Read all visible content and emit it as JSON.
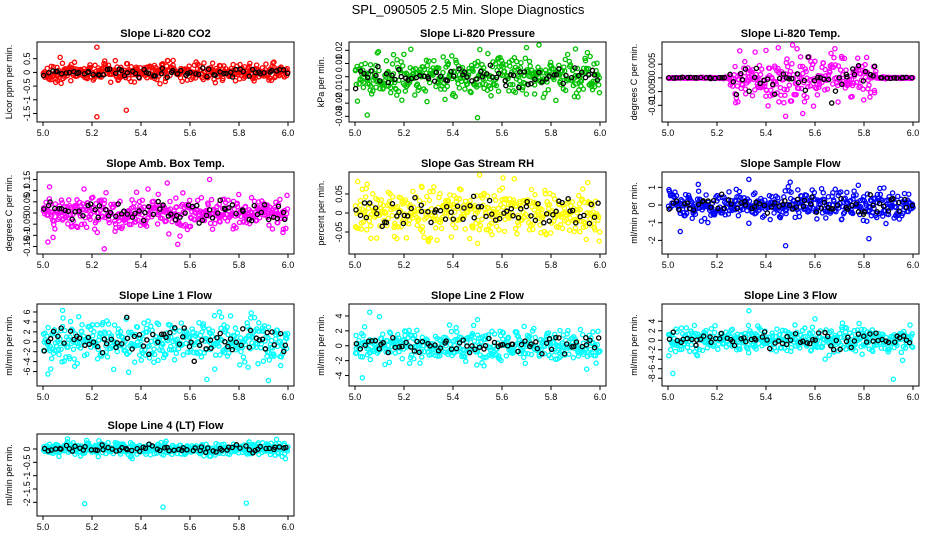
{
  "title": "SPL_090505  2.5 Min. Slope Diagnostics",
  "chart_data": [
    {
      "type": "scatter",
      "title": "Slope Li-820 CO2",
      "ylabel": "Licor ppm per min.",
      "xlim": [
        5.0,
        6.0
      ],
      "ylim": [
        -1.7,
        1.0
      ],
      "yticks": [
        -1.5,
        -1.0,
        -0.5,
        0.0,
        0.5
      ],
      "xticks": [
        5.0,
        5.2,
        5.4,
        5.6,
        5.8,
        6.0
      ],
      "color": "#ff0000",
      "spread": 0.16,
      "outliers": [
        [
          5.22,
          0.92
        ],
        [
          5.22,
          -1.62
        ],
        [
          5.34,
          -1.38
        ],
        [
          5.07,
          0.55
        ]
      ]
    },
    {
      "type": "scatter",
      "title": "Slope Li-820 Pressure",
      "ylabel": "kPa per min.",
      "xlim": [
        5.0,
        6.0
      ],
      "ylim": [
        -0.032,
        0.024
      ],
      "yticks": [
        -0.03,
        -0.02,
        -0.01,
        0.0,
        0.01,
        0.02
      ],
      "xticks": [
        5.0,
        5.2,
        5.4,
        5.6,
        5.8,
        6.0
      ],
      "color": "#00c000",
      "spread": 0.007,
      "outliers": [
        [
          5.05,
          -0.029
        ],
        [
          5.5,
          -0.031
        ],
        [
          5.7,
          0.022
        ],
        [
          5.9,
          0.021
        ]
      ]
    },
    {
      "type": "scatter",
      "title": "Slope Li-820 Temp.",
      "ylabel": "degrees C per min.",
      "xlim": [
        5.0,
        6.0
      ],
      "ylim": [
        -0.015,
        0.012
      ],
      "yticks": [
        -0.01,
        -0.005,
        0.0,
        0.005
      ],
      "xticks": [
        5.0,
        5.2,
        5.4,
        5.6,
        5.8,
        6.0
      ],
      "color": "#ff00ff",
      "spread": 0.0,
      "burst": {
        "start": 5.25,
        "end": 5.85,
        "spread": 0.004
      },
      "outliers": [
        [
          5.4,
          0.01
        ],
        [
          5.45,
          0.011
        ],
        [
          5.48,
          -0.014
        ],
        [
          5.55,
          -0.013
        ]
      ]
    },
    {
      "type": "scatter",
      "title": "Slope Amb. Box Temp.",
      "ylabel": "degrees C per min.",
      "xlim": [
        5.0,
        6.0
      ],
      "ylim": [
        -0.17,
        0.17
      ],
      "yticks": [
        -0.15,
        -0.1,
        -0.05,
        0.0,
        0.05,
        0.1,
        0.15
      ],
      "xticks": [
        5.0,
        5.2,
        5.4,
        5.6,
        5.8,
        6.0
      ],
      "color": "#ff00ff",
      "spread": 0.04,
      "outliers": [
        [
          5.68,
          0.15
        ],
        [
          5.25,
          -0.16
        ],
        [
          5.55,
          -0.14
        ],
        [
          5.02,
          -0.13
        ]
      ]
    },
    {
      "type": "scatter",
      "title": "Slope Gas Stream RH",
      "ylabel": "percent per min.",
      "xlim": [
        5.0,
        6.0
      ],
      "ylim": [
        -0.1,
        0.1
      ],
      "yticks": [
        -0.05,
        0.0,
        0.05
      ],
      "xticks": [
        5.0,
        5.2,
        5.4,
        5.6,
        5.8,
        6.0
      ],
      "color": "#ffff00",
      "spread": 0.03,
      "outliers": [
        [
          5.5,
          -0.08
        ],
        [
          5.65,
          0.09
        ],
        [
          5.3,
          -0.075
        ],
        [
          5.95,
          0.08
        ]
      ]
    },
    {
      "type": "scatter",
      "title": "Slope Sample Flow",
      "ylabel": "ml/min per min.",
      "xlim": [
        5.0,
        6.0
      ],
      "ylim": [
        -2.6,
        1.7
      ],
      "yticks": [
        -2,
        -1,
        0,
        1
      ],
      "xticks": [
        5.0,
        5.2,
        5.4,
        5.6,
        5.8,
        6.0
      ],
      "color": "#0000ff",
      "spread": 0.4,
      "outliers": [
        [
          5.33,
          1.45
        ],
        [
          5.48,
          -2.3
        ],
        [
          5.82,
          -1.9
        ],
        [
          5.05,
          -1.5
        ]
      ]
    },
    {
      "type": "scatter",
      "title": "Slope Line 1 Flow",
      "ylabel": "ml/min per min.",
      "xlim": [
        5.0,
        6.0
      ],
      "ylim": [
        -8.3,
        7.0
      ],
      "yticks": [
        -6,
        -4,
        -2,
        0,
        2,
        4,
        6
      ],
      "xticks": [
        5.0,
        5.2,
        5.4,
        5.6,
        5.8,
        6.0
      ],
      "color": "#00ffff",
      "spread": 2.2,
      "outliers": [
        [
          5.08,
          6.3
        ],
        [
          5.92,
          -7.8
        ],
        [
          5.02,
          -6.5
        ],
        [
          5.85,
          5.8
        ]
      ]
    },
    {
      "type": "scatter",
      "title": "Slope Line 2 Flow",
      "ylabel": "ml/min per min.",
      "xlim": [
        5.0,
        6.0
      ],
      "ylim": [
        -5.0,
        5.2
      ],
      "yticks": [
        -4,
        -2,
        0,
        2,
        4
      ],
      "xticks": [
        5.0,
        5.2,
        5.4,
        5.6,
        5.8,
        6.0
      ],
      "color": "#00ffff",
      "spread": 1.0,
      "outliers": [
        [
          5.03,
          -4.3
        ],
        [
          5.06,
          4.5
        ],
        [
          5.1,
          3.9
        ],
        [
          5.5,
          3.5
        ]
      ]
    },
    {
      "type": "scatter",
      "title": "Slope Line 3 Flow",
      "ylabel": "ml/min per min.",
      "xlim": [
        5.0,
        6.0
      ],
      "ylim": [
        -9.0,
        7.0
      ],
      "yticks": [
        -8,
        -6,
        -4,
        -2,
        0,
        2,
        4
      ],
      "xticks": [
        5.0,
        5.2,
        5.4,
        5.6,
        5.8,
        6.0
      ],
      "color": "#00ffff",
      "spread": 1.3,
      "outliers": [
        [
          5.33,
          6.2
        ],
        [
          5.92,
          -8.2
        ],
        [
          5.02,
          -7.0
        ],
        [
          5.6,
          4.5
        ]
      ]
    },
    {
      "type": "scatter",
      "title": "Slope Line 4 (LT) Flow",
      "ylabel": "ml/min per min.",
      "xlim": [
        5.0,
        6.0
      ],
      "ylim": [
        -2.4,
        0.45
      ],
      "yticks": [
        -2.0,
        -1.5,
        -1.0,
        -0.5,
        0.0
      ],
      "xticks": [
        5.0,
        5.2,
        5.4,
        5.6,
        5.8,
        6.0
      ],
      "color": "#00ffff",
      "spread": 0.12,
      "outliers": [
        [
          5.17,
          -2.05
        ],
        [
          5.49,
          -2.18
        ],
        [
          5.83,
          -2.03
        ],
        [
          5.1,
          0.38
        ]
      ]
    }
  ]
}
